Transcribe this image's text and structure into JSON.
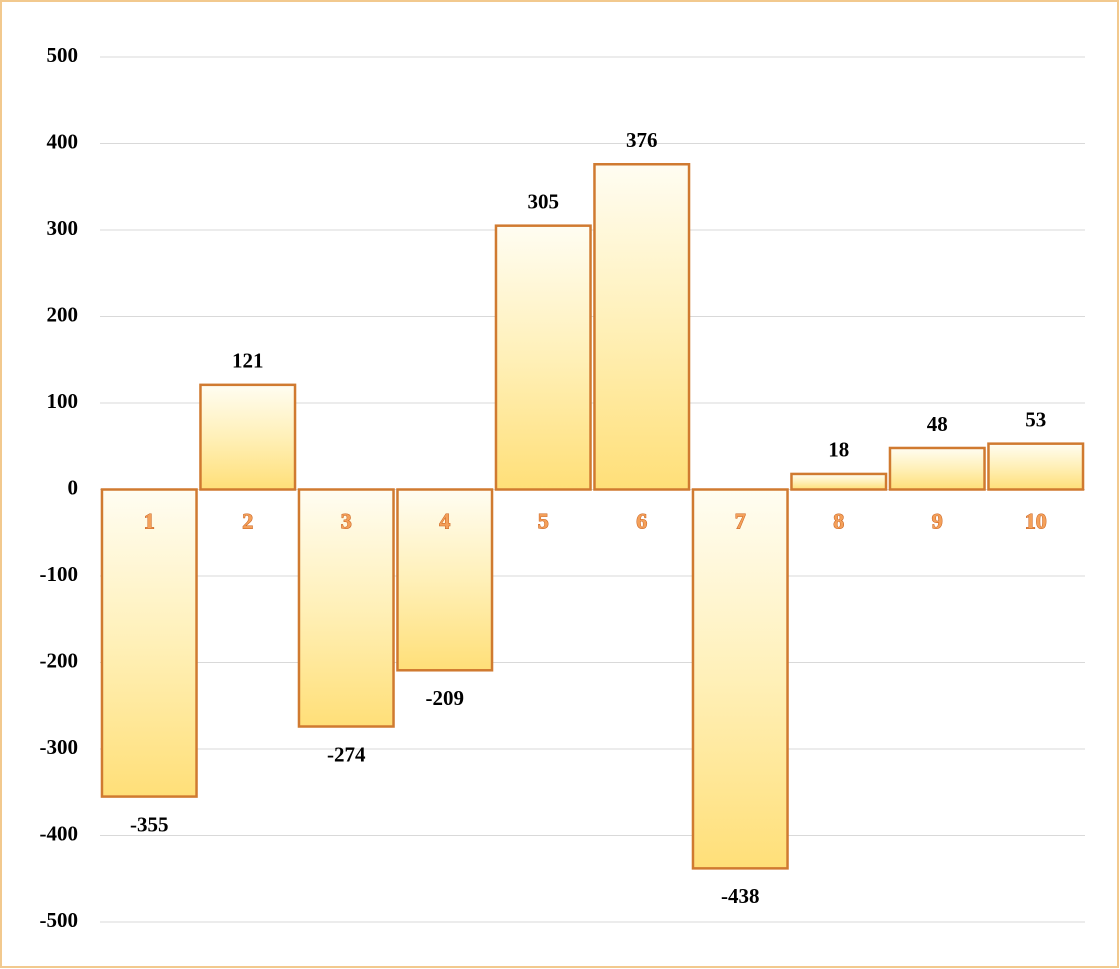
{
  "chart_data": {
    "type": "bar",
    "categories": [
      "1",
      "2",
      "3",
      "4",
      "5",
      "6",
      "7",
      "8",
      "9",
      "10"
    ],
    "values": [
      -355,
      121,
      -274,
      -209,
      305,
      376,
      -438,
      18,
      48,
      53
    ],
    "color": "#ffe48a",
    "ylim": [
      -500,
      500
    ],
    "yticks": [
      -500,
      -400,
      -300,
      -200,
      -100,
      0,
      100,
      200,
      300,
      400,
      500
    ],
    "grid": true
  }
}
